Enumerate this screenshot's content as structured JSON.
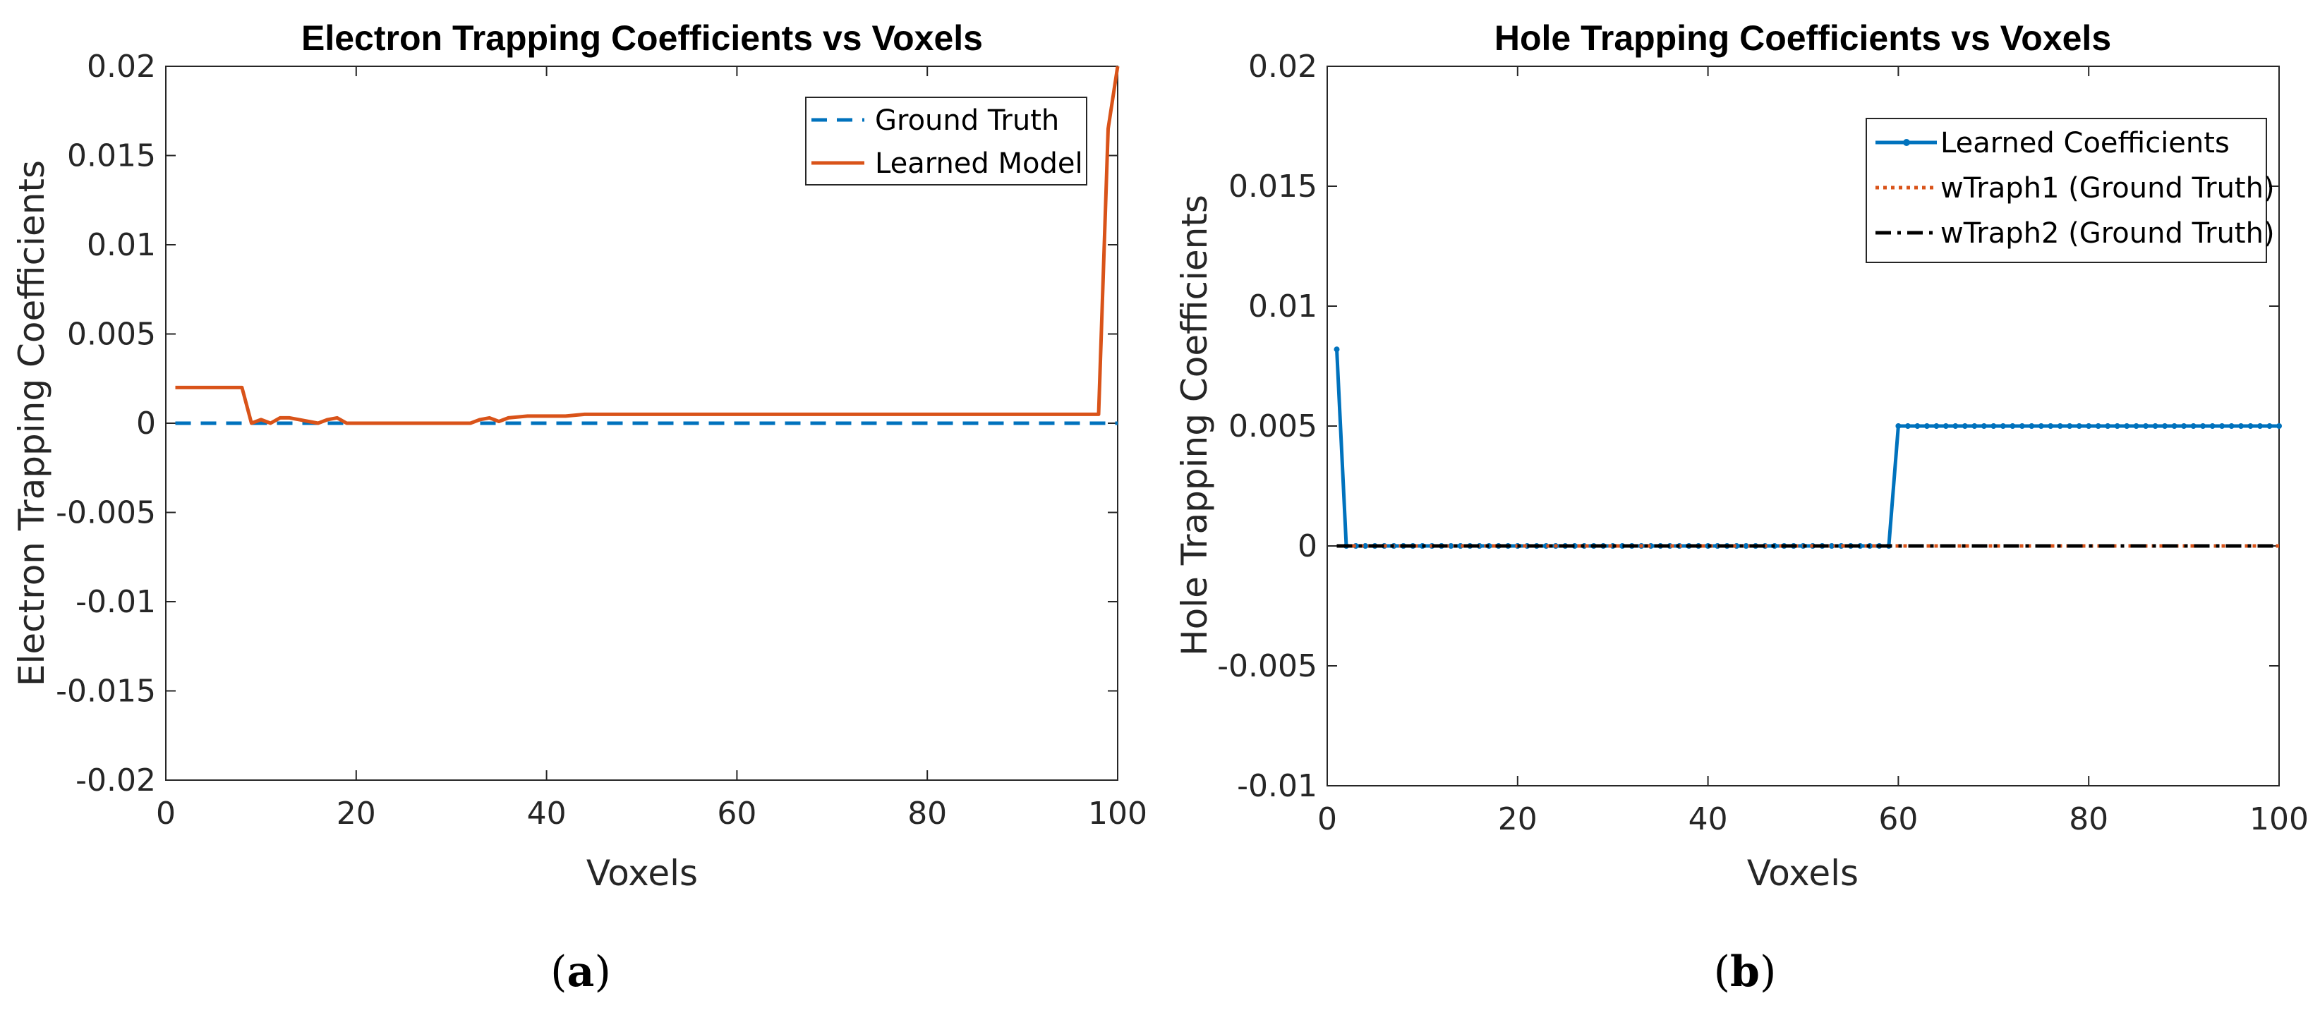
{
  "chart_data": [
    {
      "type": "line",
      "title": "Electron Trapping Coefficients vs Voxels",
      "xlabel": "Voxels",
      "ylabel": "Electron Trapping Coefficients",
      "xlim": [
        0,
        100
      ],
      "ylim": [
        -0.02,
        0.02
      ],
      "xticks": [
        0,
        20,
        40,
        60,
        80,
        100
      ],
      "xtick_labels": [
        "0",
        "20",
        "40",
        "60",
        "80",
        "100"
      ],
      "yticks": [
        -0.02,
        -0.015,
        -0.01,
        -0.005,
        0,
        0.005,
        0.01,
        0.015,
        0.02
      ],
      "ytick_labels": [
        "-0.02",
        "-0.015",
        "-0.01",
        "-0.005",
        "0",
        "0.005",
        "0.01",
        "0.015",
        "0.02"
      ],
      "legend_position": "top-right",
      "caption": "a",
      "series": [
        {
          "name": "Ground Truth",
          "color": "#0072bd",
          "style": "dashed",
          "x": [
            1,
            100
          ],
          "y": [
            0,
            0
          ]
        },
        {
          "name": "Learned Model",
          "color": "#d95319",
          "style": "solid",
          "x": [
            1,
            2,
            3,
            4,
            5,
            6,
            7,
            8,
            9,
            10,
            11,
            12,
            13,
            14,
            15,
            16,
            17,
            18,
            19,
            20,
            25,
            30,
            32,
            33,
            34,
            35,
            36,
            38,
            40,
            42,
            44,
            50,
            60,
            70,
            80,
            90,
            98,
            99,
            100
          ],
          "y": [
            0.002,
            0.002,
            0.002,
            0.002,
            0.002,
            0.002,
            0.002,
            0.002,
            0.0,
            0.0002,
            0.0,
            0.0003,
            0.0003,
            0.0002,
            0.0001,
            0.0,
            0.0002,
            0.0003,
            0.0,
            0.0,
            0.0,
            0.0,
            0.0,
            0.0002,
            0.0003,
            0.0001,
            0.0003,
            0.0004,
            0.0004,
            0.0004,
            0.0005,
            0.0005,
            0.0005,
            0.0005,
            0.0005,
            0.0005,
            0.0005,
            0.0165,
            0.02
          ]
        }
      ]
    },
    {
      "type": "line",
      "title": "Hole Trapping Coefficients vs Voxels",
      "xlabel": "Voxels",
      "ylabel": "Hole Trapping Coefficients",
      "xlim": [
        0,
        100
      ],
      "ylim": [
        -0.01,
        0.02
      ],
      "xticks": [
        0,
        20,
        40,
        60,
        80,
        100
      ],
      "xtick_labels": [
        "0",
        "20",
        "40",
        "60",
        "80",
        "100"
      ],
      "yticks": [
        -0.01,
        -0.005,
        0,
        0.005,
        0.01,
        0.015,
        0.02
      ],
      "ytick_labels": [
        "-0.01",
        "-0.005",
        "0",
        "0.005",
        "0.01",
        "0.015",
        "0.02"
      ],
      "legend_position": "top-right",
      "caption": "b",
      "series": [
        {
          "name": "Learned Coefficients",
          "color": "#0072bd",
          "style": "solid-marker",
          "x": [
            1,
            2,
            59,
            60,
            100
          ],
          "y": [
            0.0082,
            0,
            0,
            0.005,
            0.005
          ]
        },
        {
          "name": "wTraph1 (Ground Truth)",
          "color": "#d95319",
          "style": "dotted",
          "x": [
            1,
            100
          ],
          "y": [
            0,
            0
          ]
        },
        {
          "name": "wTraph2 (Ground Truth)",
          "color": "#000000",
          "style": "dashdot",
          "x": [
            1,
            100
          ],
          "y": [
            0,
            0
          ]
        }
      ]
    }
  ]
}
